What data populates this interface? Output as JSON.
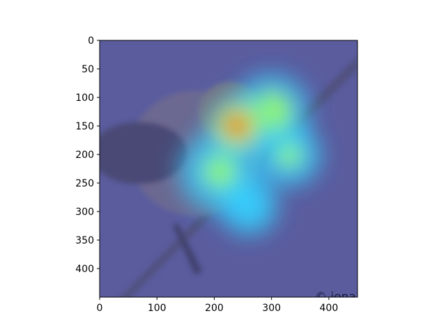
{
  "chart_data": {
    "type": "heatmap",
    "description": "",
    "xlim": [
      0,
      450
    ],
    "ylim": [
      450,
      0
    ],
    "x_ticks": [
      0,
      100,
      200,
      300,
      400
    ],
    "y_ticks": [
      0,
      50,
      100,
      150,
      200,
      250,
      300,
      350,
      400
    ],
    "x_tick_labels": [
      "0",
      "100",
      "200",
      "300",
      "400"
    ],
    "y_tick_labels": [
      "0",
      "50",
      "100",
      "150",
      "200",
      "250",
      "300",
      "350",
      "400"
    ],
    "colormap": "jet",
    "grid": false,
    "hotspots": [
      {
        "x": 240,
        "y": 150,
        "intensity": 1.0,
        "spread": 55
      },
      {
        "x": 300,
        "y": 125,
        "intensity": 0.55,
        "spread": 70
      },
      {
        "x": 330,
        "y": 200,
        "intensity": 0.5,
        "spread": 60
      },
      {
        "x": 210,
        "y": 230,
        "intensity": 0.5,
        "spread": 75
      },
      {
        "x": 260,
        "y": 290,
        "intensity": 0.35,
        "spread": 55
      }
    ],
    "background_color": "#5a5c9e",
    "watermark": "© jena"
  }
}
